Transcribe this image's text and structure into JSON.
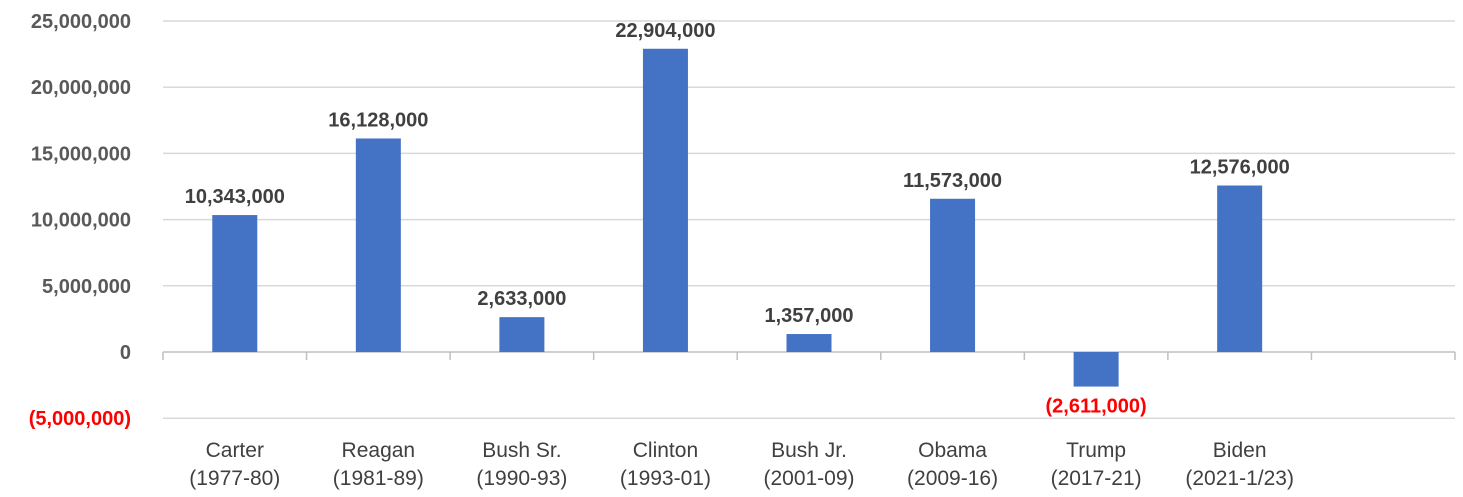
{
  "chart_data": {
    "type": "bar",
    "title": "",
    "xlabel": "",
    "ylabel": "",
    "ylim": [
      -5000000,
      25000000
    ],
    "yticks": [
      {
        "value": -5000000,
        "label": "(5,000,000)"
      },
      {
        "value": 0,
        "label": "0"
      },
      {
        "value": 5000000,
        "label": "5,000,000"
      },
      {
        "value": 10000000,
        "label": "10,000,000"
      },
      {
        "value": 15000000,
        "label": "15,000,000"
      },
      {
        "value": 20000000,
        "label": "20,000,000"
      },
      {
        "value": 25000000,
        "label": "25,000,000"
      }
    ],
    "grid": true,
    "legend": "none",
    "bar_color": "#4472c4",
    "negative_label_color": "#ff0000",
    "categories": [
      {
        "name": "Carter",
        "years": "(1977-80)"
      },
      {
        "name": "Reagan",
        "years": "(1981-89)"
      },
      {
        "name": "Bush Sr.",
        "years": "(1990-93)"
      },
      {
        "name": "Clinton",
        "years": "(1993-01)"
      },
      {
        "name": "Bush Jr.",
        "years": "(2001-09)"
      },
      {
        "name": "Obama",
        "years": "(2009-16)"
      },
      {
        "name": "Trump",
        "years": "(2017-21)"
      },
      {
        "name": "Biden",
        "years": "(2021-1/23)"
      },
      {
        "name": "",
        "years": ""
      }
    ],
    "values": [
      10343000,
      16128000,
      2633000,
      22904000,
      1357000,
      11573000,
      -2611000,
      12576000,
      null
    ],
    "data_labels": [
      "10,343,000",
      "16,128,000",
      "2,633,000",
      "22,904,000",
      "1,357,000",
      "11,573,000",
      "(2,611,000)",
      "12,576,000",
      ""
    ]
  }
}
